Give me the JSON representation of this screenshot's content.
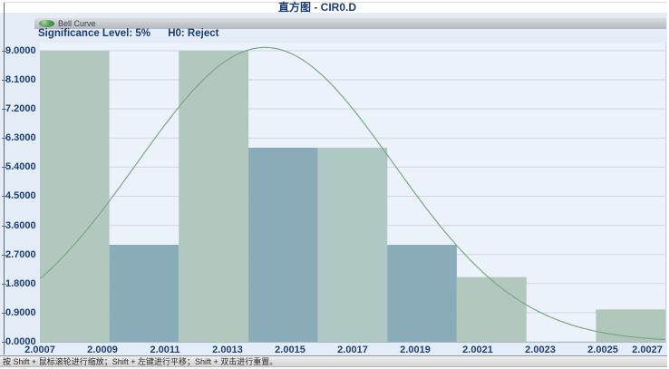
{
  "window": {
    "title": "直方图 - CIR0.D"
  },
  "legend": {
    "items": [
      {
        "label": "Bell Curve",
        "icon": "bell-curve-marker-icon",
        "color": "#3f8f45"
      }
    ]
  },
  "annotations": {
    "significance_label": "Significance Level: 5%",
    "h0_label": "H0: Reject"
  },
  "status_bar": {
    "hint": "按 Shift + 鼠标滚轮进行缩放；Shift + 左键进行平移；Shift + 双击进行重置。"
  },
  "colors": {
    "title_text": "#1b3c73",
    "axis_text": "#1e3f77",
    "plot_background": "#ebf2fa",
    "page_background": "#e3ecf7",
    "gridline": "#cdd8e3",
    "bar_light": "#b2c7bd",
    "bar_dark": "#8aabb8",
    "curve": "#7da687"
  },
  "chart_data": {
    "type": "bar",
    "subtype": "histogram-with-bell-curve",
    "title": "直方图 - CIR0.D",
    "xlabel": "",
    "ylabel": "",
    "x_range": [
      2.0007,
      2.0027
    ],
    "y_range": [
      0,
      9.25
    ],
    "grid": true,
    "legend_position": "top-left",
    "x_tick_values": [
      2.0007,
      2.0009,
      2.0011,
      2.0013,
      2.0015,
      2.0017,
      2.0019,
      2.0021,
      2.0023,
      2.0025,
      2.0027
    ],
    "x_tick_labels": [
      "2.0007",
      "2.0009",
      "2.0011",
      "2.0013",
      "2.0015",
      "2.0017",
      "2.0019",
      "2.0021",
      "2.0023",
      "2.0025",
      "2.0027"
    ],
    "y_tick_values": [
      0,
      0.9,
      1.8,
      2.7,
      3.6,
      4.5,
      5.4,
      6.3,
      7.2,
      8.1,
      9.0
    ],
    "y_tick_labels": [
      "0.0000",
      "0.9000",
      "1.8000",
      "2.7000",
      "3.6000",
      "4.5000",
      "5.4000",
      "6.3000",
      "7.2000",
      "8.1000",
      "9.0000"
    ],
    "bins": [
      {
        "x0": 2.0007,
        "x1": 2.000922,
        "count": 9,
        "color": "#b2c7bd"
      },
      {
        "x0": 2.000922,
        "x1": 2.001144,
        "count": 3,
        "color": "#8aabb8"
      },
      {
        "x0": 2.001144,
        "x1": 2.001367,
        "count": 9,
        "color": "#b2c7bd"
      },
      {
        "x0": 2.001367,
        "x1": 2.001589,
        "count": 6,
        "color": "#8aabb8"
      },
      {
        "x0": 2.001589,
        "x1": 2.001811,
        "count": 6,
        "color": "#b0c8c4"
      },
      {
        "x0": 2.001811,
        "x1": 2.002033,
        "count": 3,
        "color": "#8aabb8"
      },
      {
        "x0": 2.002033,
        "x1": 2.002256,
        "count": 2,
        "color": "#b2c7bd"
      },
      {
        "x0": 2.002256,
        "x1": 2.002478,
        "count": 0,
        "color": "#8aabb8"
      },
      {
        "x0": 2.002478,
        "x1": 2.0027,
        "count": 1,
        "color": "#b0c6ba"
      }
    ],
    "series": [
      {
        "name": "Bell Curve",
        "type": "line",
        "color": "#7da687",
        "gaussian": {
          "mean": 2.00142,
          "sd": 0.00041,
          "peak": 9.1
        }
      }
    ]
  }
}
